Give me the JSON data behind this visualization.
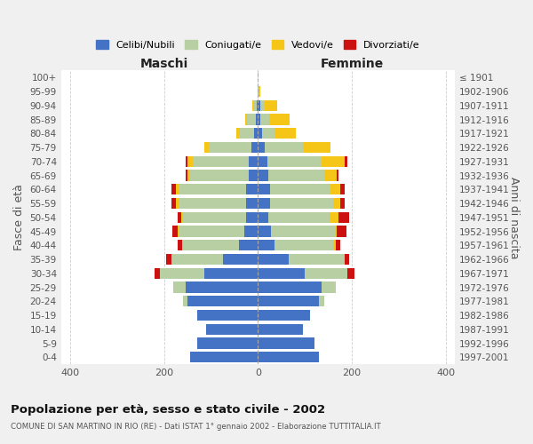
{
  "age_groups": [
    "0-4",
    "5-9",
    "10-14",
    "15-19",
    "20-24",
    "25-29",
    "30-34",
    "35-39",
    "40-44",
    "45-49",
    "50-54",
    "55-59",
    "60-64",
    "65-69",
    "70-74",
    "75-79",
    "80-84",
    "85-89",
    "90-94",
    "95-99",
    "100+"
  ],
  "birth_years": [
    "1997-2001",
    "1992-1996",
    "1987-1991",
    "1982-1986",
    "1977-1981",
    "1972-1976",
    "1967-1971",
    "1962-1966",
    "1957-1961",
    "1952-1956",
    "1947-1951",
    "1942-1946",
    "1937-1941",
    "1932-1936",
    "1927-1931",
    "1922-1926",
    "1917-1921",
    "1912-1916",
    "1907-1911",
    "1902-1906",
    "≤ 1901"
  ],
  "maschi": {
    "celibi": [
      145,
      130,
      110,
      130,
      150,
      155,
      115,
      75,
      40,
      30,
      25,
      25,
      25,
      20,
      20,
      15,
      8,
      5,
      3,
      0,
      0
    ],
    "coniugati": [
      0,
      0,
      0,
      0,
      10,
      25,
      95,
      110,
      120,
      140,
      135,
      145,
      145,
      125,
      120,
      90,
      30,
      18,
      8,
      0,
      0
    ],
    "vedovi": [
      0,
      0,
      0,
      0,
      0,
      0,
      0,
      0,
      2,
      2,
      3,
      5,
      5,
      5,
      10,
      10,
      8,
      5,
      2,
      0,
      0
    ],
    "divorziati": [
      0,
      0,
      0,
      0,
      0,
      0,
      10,
      10,
      10,
      10,
      8,
      10,
      10,
      5,
      5,
      0,
      0,
      0,
      0,
      0,
      0
    ]
  },
  "femmine": {
    "nubili": [
      130,
      120,
      95,
      110,
      130,
      135,
      100,
      65,
      35,
      28,
      22,
      25,
      25,
      22,
      20,
      15,
      8,
      5,
      5,
      0,
      0
    ],
    "coniugate": [
      0,
      0,
      0,
      0,
      12,
      30,
      90,
      120,
      125,
      135,
      130,
      135,
      130,
      120,
      115,
      80,
      28,
      18,
      10,
      2,
      0
    ],
    "vedove": [
      0,
      0,
      0,
      0,
      0,
      0,
      0,
      0,
      5,
      5,
      20,
      15,
      20,
      25,
      50,
      60,
      45,
      45,
      25,
      3,
      0
    ],
    "divorziate": [
      0,
      0,
      0,
      0,
      0,
      0,
      15,
      10,
      10,
      20,
      22,
      10,
      10,
      5,
      5,
      0,
      0,
      0,
      0,
      0,
      0
    ]
  },
  "colors": {
    "celibi": "#4472c4",
    "coniugati": "#b8cfa4",
    "vedovi": "#f5c518",
    "divorziati": "#cc1111"
  },
  "xlim": 420,
  "title": "Popolazione per età, sesso e stato civile - 2002",
  "subtitle": "COMUNE DI SAN MARTINO IN RIO (RE) - Dati ISTAT 1° gennaio 2002 - Elaborazione TUTTITALIA.IT",
  "xlabel_left": "Maschi",
  "xlabel_right": "Femmine",
  "ylabel_left": "Fasce di età",
  "ylabel_right": "Anni di nascita",
  "bg_color": "#f0f0f0",
  "plot_bg": "#ffffff"
}
